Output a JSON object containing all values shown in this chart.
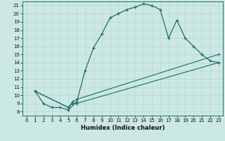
{
  "title": "",
  "xlabel": "Humidex (Indice chaleur)",
  "bg_color": "#cce8e4",
  "grid_color": "#b8d8d0",
  "line_color": "#1a7068",
  "xlim": [
    -0.5,
    23.5
  ],
  "ylim": [
    7.5,
    21.5
  ],
  "xticks": [
    0,
    1,
    2,
    3,
    4,
    5,
    6,
    7,
    8,
    9,
    10,
    11,
    12,
    13,
    14,
    15,
    16,
    17,
    18,
    19,
    20,
    21,
    22,
    23
  ],
  "yticks": [
    8,
    9,
    10,
    11,
    12,
    13,
    14,
    15,
    16,
    17,
    18,
    19,
    20,
    21
  ],
  "line1_x": [
    1,
    2,
    3,
    4,
    5,
    6,
    7,
    8,
    9,
    10,
    11,
    12,
    13,
    14,
    15,
    16,
    17,
    18,
    19,
    20,
    21,
    22,
    23
  ],
  "line1_y": [
    10.5,
    9.0,
    8.5,
    8.5,
    8.2,
    9.2,
    13.0,
    15.8,
    17.5,
    19.5,
    20.0,
    20.5,
    20.8,
    21.2,
    21.0,
    20.5,
    17.0,
    19.2,
    17.0,
    16.0,
    15.0,
    14.2,
    14.0
  ],
  "line2_x": [
    1,
    5,
    5.5,
    6,
    23
  ],
  "line2_y": [
    10.5,
    8.5,
    9.2,
    9.5,
    15.0
  ],
  "line3_x": [
    1,
    5,
    5.5,
    6,
    23
  ],
  "line3_y": [
    10.5,
    8.5,
    9.0,
    9.0,
    14.0
  ]
}
